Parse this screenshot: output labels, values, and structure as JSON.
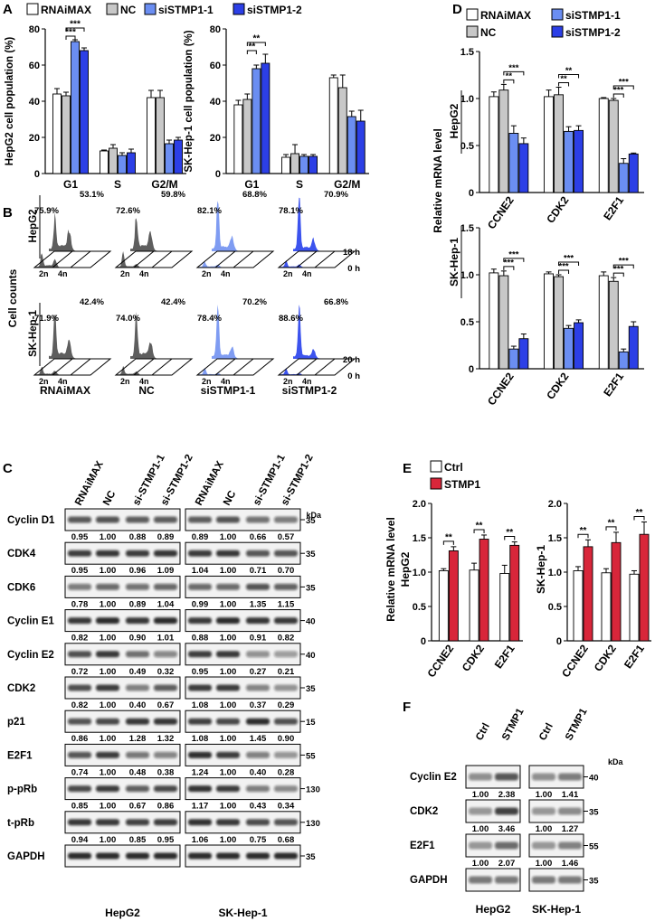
{
  "colors": {
    "rnaimax": "#ffffff",
    "nc": "#c8c8c8",
    "si1": "#6b8ef2",
    "si2": "#2c3fe6",
    "ctrl": "#ffffff",
    "stmp1": "#d8263a",
    "histo_dark": "#5e5e5e",
    "histo_light": "#7f9cf2",
    "histo_blue": "#3c53ee"
  },
  "panel_labels": {
    "A": "A",
    "B": "B",
    "C": "C",
    "D": "D",
    "E": "E",
    "F": "F"
  },
  "legend_A": [
    "RNAiMAX",
    "NC",
    "siSTMP1-1",
    "siSTMP1-2"
  ],
  "legend_D": [
    "RNAiMAX",
    "NC",
    "siSTMP1-1",
    "siSTMP1-2"
  ],
  "legend_E": [
    "Ctrl",
    "STMP1"
  ],
  "common": {
    "relative_mrna": "Relative mRNA level",
    "kda": "kDa",
    "cell_counts": "Cell counts",
    "hepg2": "HepG2",
    "skhep1": "SK-Hep-1",
    "h18": "18 h",
    "h20": "20 h",
    "h0": "0 h",
    "n2": "2n",
    "n4": "4n"
  },
  "chart_data": [
    {
      "id": "A_hepg2",
      "type": "bar",
      "ylabel": "HepG2 cell population (%)",
      "ylim": [
        0,
        80
      ],
      "yticks": [
        "0",
        "20",
        "40",
        "60",
        "80"
      ],
      "categories": [
        "G1",
        "S",
        "G2/M"
      ],
      "series": [
        {
          "name": "RNAiMAX",
          "values": [
            44,
            12.5,
            42
          ],
          "errors": [
            3,
            0.5,
            4
          ]
        },
        {
          "name": "NC",
          "values": [
            43,
            14,
            42
          ],
          "errors": [
            2,
            2,
            4
          ]
        },
        {
          "name": "siSTMP1-1",
          "values": [
            73,
            10,
            16.5
          ],
          "errors": [
            1,
            1.5,
            2
          ]
        },
        {
          "name": "siSTMP1-2",
          "values": [
            68,
            11.5,
            18.5
          ],
          "errors": [
            1.5,
            2,
            1.5
          ]
        }
      ],
      "significance": [
        "***",
        "***"
      ]
    },
    {
      "id": "A_skhep1",
      "type": "bar",
      "ylabel": "SK-Hep-1 cell population (%)",
      "ylim": [
        0,
        80
      ],
      "yticks": [
        "0",
        "20",
        "40",
        "60",
        "80"
      ],
      "categories": [
        "G1",
        "S",
        "G2/M"
      ],
      "series": [
        {
          "name": "RNAiMAX",
          "values": [
            38,
            9,
            53
          ],
          "errors": [
            2.5,
            1.5,
            1.5
          ]
        },
        {
          "name": "NC",
          "values": [
            41,
            11,
            47.5
          ],
          "errors": [
            3,
            5,
            7
          ]
        },
        {
          "name": "siSTMP1-1",
          "values": [
            58,
            9.5,
            31.5
          ],
          "errors": [
            2,
            1,
            3
          ]
        },
        {
          "name": "siSTMP1-2",
          "values": [
            61,
            9.5,
            29
          ],
          "errors": [
            5,
            1,
            6
          ]
        }
      ],
      "significance": [
        "**",
        "**"
      ]
    },
    {
      "id": "D_hepg2",
      "type": "bar",
      "ylim": [
        0,
        1.5
      ],
      "yticks": [
        "0",
        "0.5",
        "1.0",
        "1.5"
      ],
      "categories": [
        "CCNE2",
        "CDK2",
        "E2F1"
      ],
      "series": [
        {
          "name": "RNAiMAX",
          "values": [
            1.02,
            1.02,
            1.0
          ],
          "errors": [
            0.05,
            0.07,
            0.01
          ]
        },
        {
          "name": "NC",
          "values": [
            1.09,
            1.04,
            0.98
          ],
          "errors": [
            0.06,
            0.08,
            0.02
          ]
        },
        {
          "name": "siSTMP1-1",
          "values": [
            0.63,
            0.65,
            0.31
          ],
          "errors": [
            0.08,
            0.05,
            0.05
          ]
        },
        {
          "name": "siSTMP1-2",
          "values": [
            0.52,
            0.66,
            0.41
          ],
          "errors": [
            0.06,
            0.05,
            0.01
          ]
        }
      ],
      "significance": [
        "**",
        "***",
        "**",
        "**",
        "***",
        "***"
      ]
    },
    {
      "id": "D_skhep1",
      "type": "bar",
      "ylim": [
        0,
        1.5
      ],
      "yticks": [
        "0",
        "0.5",
        "1.0",
        "1.5"
      ],
      "categories": [
        "CCNE2",
        "CDK2",
        "E2F1"
      ],
      "series": [
        {
          "name": "RNAiMAX",
          "values": [
            1.02,
            1.01,
            0.99
          ],
          "errors": [
            0.04,
            0.02,
            0.04
          ]
        },
        {
          "name": "NC",
          "values": [
            0.99,
            0.98,
            0.93
          ],
          "errors": [
            0.05,
            0.02,
            0.04
          ]
        },
        {
          "name": "siSTMP1-1",
          "values": [
            0.21,
            0.43,
            0.18
          ],
          "errors": [
            0.03,
            0.03,
            0.03
          ]
        },
        {
          "name": "siSTMP1-2",
          "values": [
            0.32,
            0.49,
            0.45
          ],
          "errors": [
            0.05,
            0.03,
            0.05
          ]
        }
      ],
      "significance": [
        "***",
        "***",
        "***",
        "***",
        "***",
        "***"
      ]
    },
    {
      "id": "E_hepg2",
      "type": "bar",
      "ylim": [
        0,
        2.0
      ],
      "yticks": [
        "0",
        "0.5",
        "1.0",
        "1.5",
        "2.0"
      ],
      "categories": [
        "CCNE2",
        "CDK2",
        "E2F1"
      ],
      "series": [
        {
          "name": "Ctrl",
          "values": [
            1.02,
            1.03,
            0.98
          ],
          "errors": [
            0.03,
            0.1,
            0.12
          ]
        },
        {
          "name": "STMP1",
          "values": [
            1.31,
            1.48,
            1.39
          ],
          "errors": [
            0.06,
            0.06,
            0.05
          ]
        }
      ],
      "significance": [
        "**",
        "**",
        "**"
      ]
    },
    {
      "id": "E_skhep1",
      "type": "bar",
      "ylim": [
        0,
        2.0
      ],
      "yticks": [
        "0",
        "0.5",
        "1.0",
        "1.5",
        "2.0"
      ],
      "categories": [
        "CCNE2",
        "CDK2",
        "E2F1"
      ],
      "series": [
        {
          "name": "Ctrl",
          "values": [
            1.02,
            0.99,
            0.97
          ],
          "errors": [
            0.06,
            0.06,
            0.05
          ]
        },
        {
          "name": "STMP1",
          "values": [
            1.37,
            1.43,
            1.55
          ],
          "errors": [
            0.1,
            0.15,
            0.18
          ]
        }
      ],
      "significance": [
        "**",
        "**",
        "**"
      ]
    }
  ],
  "panel_B": {
    "rows": [
      {
        "label": "HepG2",
        "time": "18 h",
        "values": [
          [
            "75.9%",
            "53.1%"
          ],
          [
            "72.6%",
            "59.8%"
          ],
          [
            "82.1%",
            "68.8%"
          ],
          [
            "78.1%",
            "70.9%"
          ]
        ]
      },
      {
        "label": "SK-Hep-1",
        "time": "20 h",
        "values": [
          [
            "71.9%",
            "42.4%"
          ],
          [
            "74.0%",
            "42.4%"
          ],
          [
            "78.4%",
            "70.2%"
          ],
          [
            "88.6%",
            "66.8%"
          ]
        ]
      }
    ],
    "columns": [
      "RNAiMAX",
      "NC",
      "siSTMP1-1",
      "siSTMP1-2"
    ]
  },
  "panel_C": {
    "columns": [
      "RNAiMAX",
      "NC",
      "si-STMP1-1",
      "si-STMP1-2",
      "RNAiMAX",
      "NC",
      "si-STMP1-1",
      "si-STMP1-2"
    ],
    "bottom": [
      "HepG2",
      "SK-Hep-1"
    ],
    "blots": [
      {
        "label": "Cyclin D1",
        "mw": "35",
        "left": [
          "0.95",
          "1.00",
          "0.88",
          "0.89"
        ],
        "right": [
          "0.89",
          "1.00",
          "0.66",
          "0.57"
        ]
      },
      {
        "label": "CDK4",
        "mw": "35",
        "left": [
          "0.95",
          "1.00",
          "0.96",
          "1.09"
        ],
        "right": [
          "1.04",
          "1.00",
          "0.71",
          "0.70"
        ]
      },
      {
        "label": "CDK6",
        "mw": "35",
        "left": [
          "0.78",
          "1.00",
          "0.89",
          "1.04"
        ],
        "right": [
          "0.99",
          "1.00",
          "1.35",
          "1.15"
        ]
      },
      {
        "label": "Cyclin E1",
        "mw": "40",
        "left": [
          "0.82",
          "1.00",
          "0.90",
          "1.01"
        ],
        "right": [
          "0.88",
          "1.00",
          "0.91",
          "0.82"
        ]
      },
      {
        "label": "Cyclin E2",
        "mw": "40",
        "left": [
          "0.72",
          "1.00",
          "0.49",
          "0.32"
        ],
        "right": [
          "0.95",
          "1.00",
          "0.27",
          "0.21"
        ]
      },
      {
        "label": "CDK2",
        "mw": "35",
        "left": [
          "0.82",
          "1.00",
          "0.40",
          "0.67"
        ],
        "right": [
          "1.08",
          "1.00",
          "0.37",
          "0.29"
        ]
      },
      {
        "label": "p21",
        "mw": "15",
        "left": [
          "0.86",
          "1.00",
          "1.28",
          "1.32"
        ],
        "right": [
          "1.08",
          "1.00",
          "1.45",
          "0.90"
        ]
      },
      {
        "label": "E2F1",
        "mw": "55",
        "left": [
          "0.74",
          "1.00",
          "0.48",
          "0.38"
        ],
        "right": [
          "1.24",
          "1.00",
          "0.40",
          "0.28"
        ]
      },
      {
        "label": "p-pRb",
        "mw": "130",
        "left": [
          "0.85",
          "1.00",
          "0.67",
          "0.86"
        ],
        "right": [
          "1.17",
          "1.00",
          "0.43",
          "0.34"
        ]
      },
      {
        "label": "t-pRb",
        "mw": "130",
        "left": [
          "0.94",
          "1.00",
          "0.85",
          "0.95"
        ],
        "right": [
          "1.06",
          "1.00",
          "0.75",
          "0.68"
        ]
      },
      {
        "label": "GAPDH",
        "mw": "35",
        "left": null,
        "right": null
      }
    ]
  },
  "panel_F": {
    "columns": [
      "Ctrl",
      "STMP1",
      "Ctrl",
      "STMP1"
    ],
    "bottom": [
      "HepG2",
      "SK-Hep-1"
    ],
    "blots": [
      {
        "label": "Cyclin E2",
        "mw": "40",
        "left": [
          "1.00",
          "2.38"
        ],
        "right": [
          "1.00",
          "1.41"
        ]
      },
      {
        "label": "CDK2",
        "mw": "35",
        "left": [
          "1.00",
          "3.46"
        ],
        "right": [
          "1.00",
          "1.27"
        ]
      },
      {
        "label": "E2F1",
        "mw": "55",
        "left": [
          "1.00",
          "2.07"
        ],
        "right": [
          "1.00",
          "1.46"
        ]
      },
      {
        "label": "GAPDH",
        "mw": "35",
        "left": null,
        "right": null
      }
    ]
  }
}
